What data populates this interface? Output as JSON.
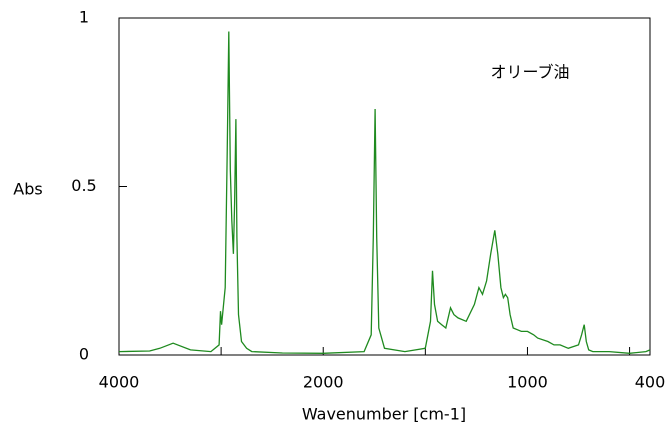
{
  "chart_data": {
    "type": "line",
    "annotation": "オリーブ油",
    "ylabel": "Abs",
    "xlabel": "Wavenumber [cm-1]",
    "xlim": [
      4000,
      400
    ],
    "x_scale_break": 2000,
    "x_scale_compression_above_break": 2,
    "xticks": [
      4000,
      2000,
      1000,
      400
    ],
    "xminor_ticks": [
      3000,
      1500,
      500
    ],
    "ylim": [
      0,
      1
    ],
    "yticks": [
      0,
      0.5,
      1
    ],
    "series": [
      {
        "color": "#1f8a1f",
        "x": [
          4000,
          3700,
          3600,
          3470,
          3300,
          3100,
          3020,
          3006,
          2995,
          2960,
          2940,
          2925,
          2910,
          2895,
          2880,
          2868,
          2855,
          2845,
          2830,
          2800,
          2750,
          2700,
          2400,
          2000,
          1800,
          1765,
          1755,
          1746,
          1738,
          1728,
          1700,
          1600,
          1500,
          1475,
          1465,
          1455,
          1440,
          1420,
          1400,
          1377,
          1360,
          1340,
          1300,
          1260,
          1238,
          1220,
          1200,
          1180,
          1160,
          1145,
          1130,
          1118,
          1108,
          1097,
          1085,
          1070,
          1050,
          1030,
          1000,
          970,
          950,
          900,
          870,
          840,
          800,
          750,
          735,
          722,
          712,
          700,
          680,
          600,
          500,
          420,
          400
        ],
        "values": [
          0.01,
          0.012,
          0.02,
          0.035,
          0.015,
          0.01,
          0.03,
          0.13,
          0.09,
          0.2,
          0.6,
          0.96,
          0.55,
          0.4,
          0.3,
          0.45,
          0.7,
          0.35,
          0.12,
          0.04,
          0.02,
          0.01,
          0.006,
          0.005,
          0.01,
          0.06,
          0.35,
          0.73,
          0.35,
          0.08,
          0.02,
          0.01,
          0.02,
          0.1,
          0.25,
          0.15,
          0.1,
          0.09,
          0.08,
          0.14,
          0.12,
          0.11,
          0.1,
          0.15,
          0.2,
          0.18,
          0.22,
          0.3,
          0.37,
          0.3,
          0.2,
          0.17,
          0.18,
          0.17,
          0.12,
          0.08,
          0.075,
          0.07,
          0.07,
          0.06,
          0.05,
          0.04,
          0.03,
          0.03,
          0.02,
          0.03,
          0.06,
          0.09,
          0.04,
          0.015,
          0.01,
          0.01,
          0.005,
          0.01,
          0.015
        ]
      }
    ]
  }
}
